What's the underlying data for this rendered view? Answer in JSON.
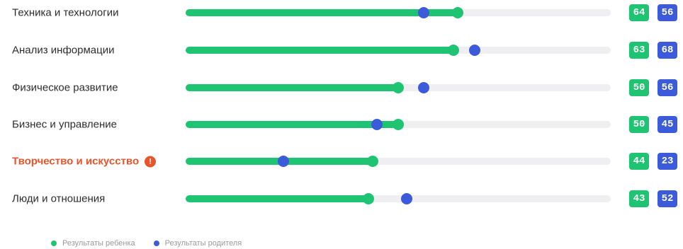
{
  "colors": {
    "child": "#1fc472",
    "parent": "#3b5bdb",
    "highlight": "#e8552b",
    "track": "#efeff1"
  },
  "rows": [
    {
      "label": "Техника и технологии",
      "child": 64,
      "parent": 56,
      "child_text": "64",
      "parent_text": "56",
      "highlighted": false
    },
    {
      "label": "Анализ информации",
      "child": 63,
      "parent": 68,
      "child_text": "63",
      "parent_text": "68",
      "highlighted": false
    },
    {
      "label": "Физическое развитие",
      "child": 50,
      "parent": 56,
      "child_text": "50",
      "parent_text": "56",
      "highlighted": false
    },
    {
      "label": "Бизнес и управление",
      "child": 50,
      "parent": 45,
      "child_text": "50",
      "parent_text": "45",
      "highlighted": false
    },
    {
      "label": "Творчество и искусство",
      "child": 44,
      "parent": 23,
      "child_text": "44",
      "parent_text": "23",
      "highlighted": true,
      "icon": "alert-icon"
    },
    {
      "label": "Люди и отношения",
      "child": 43,
      "parent": 52,
      "child_text": "43",
      "parent_text": "52",
      "highlighted": false
    }
  ],
  "legend": {
    "child_label": "Результаты ребенка",
    "parent_label": "Результаты родителя"
  }
}
